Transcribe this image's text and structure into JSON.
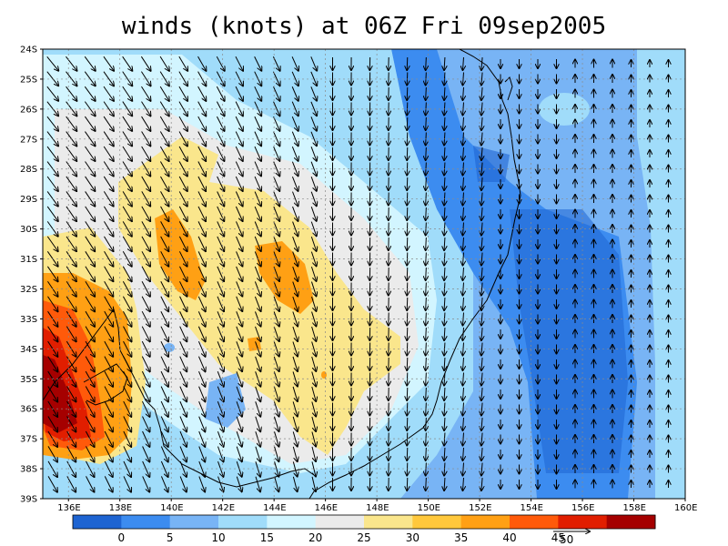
{
  "title": "winds (knots) at 06Z Fri 09sep2005",
  "lat_labels": [
    "24S",
    "25S",
    "26S",
    "27S",
    "28S",
    "29S",
    "30S",
    "31S",
    "32S",
    "33S",
    "34S",
    "35S",
    "36S",
    "37S",
    "38S",
    "39S"
  ],
  "lon_labels": [
    "136E",
    "138E",
    "140E",
    "142E",
    "144E",
    "146E",
    "148E",
    "150E",
    "152E",
    "154E",
    "156E",
    "158E",
    "160E"
  ],
  "colorbar": {
    "colors": [
      "#1e64d2",
      "#3c8cf0",
      "#78b4f5",
      "#a0dcfa",
      "#d2f5ff",
      "#ebebeb",
      "#fae68c",
      "#ffc83c",
      "#ffa014",
      "#ff5a0a",
      "#e11e00",
      "#a50000"
    ],
    "labels": [
      "0",
      "5",
      "10",
      "15",
      "20",
      "25",
      "30",
      "35",
      "40",
      "45"
    ]
  },
  "reference_vector": {
    "label": "50"
  }
}
